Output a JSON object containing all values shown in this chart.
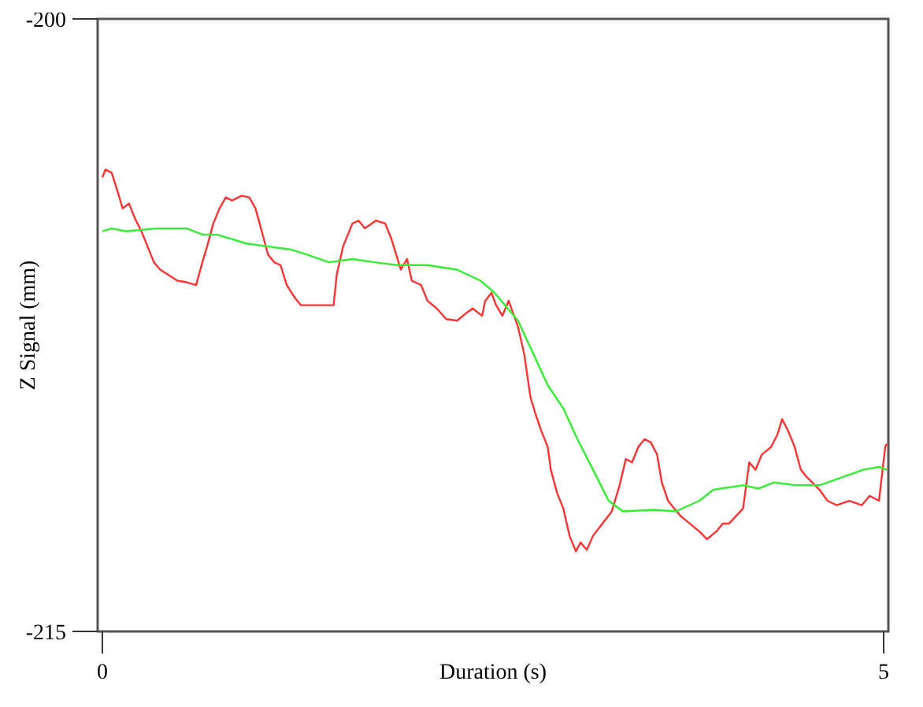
{
  "chart_data": {
    "type": "line",
    "xlabel": "Duration (s)",
    "ylabel": "Z Signal (mm)",
    "xlim": [
      -0.03,
      5.03
    ],
    "xticks": [
      0,
      5
    ],
    "ylim": [
      -215,
      -200
    ],
    "yticks": [
      -215,
      -200
    ],
    "grid": false,
    "series": [
      {
        "color": "#ff3333",
        "x": [
          0,
          0.02,
          0.06,
          0.1,
          0.13,
          0.17,
          0.21,
          0.25,
          0.29,
          0.33,
          0.37,
          0.42,
          0.48,
          0.54,
          0.6,
          0.64,
          0.67,
          0.71,
          0.75,
          0.79,
          0.83,
          0.89,
          0.94,
          0.98,
          1.02,
          1.06,
          1.1,
          1.14,
          1.18,
          1.23,
          1.27,
          1.35,
          1.48,
          1.5,
          1.54,
          1.6,
          1.64,
          1.68,
          1.75,
          1.81,
          1.85,
          1.91,
          1.95,
          1.98,
          2.04,
          2.08,
          2.14,
          2.2,
          2.27,
          2.33,
          2.37,
          2.43,
          2.45,
          2.49,
          2.52,
          2.56,
          2.6,
          2.66,
          2.7,
          2.74,
          2.77,
          2.81,
          2.85,
          2.87,
          2.91,
          2.95,
          2.99,
          3.03,
          3.06,
          3.1,
          3.14,
          3.2,
          3.26,
          3.31,
          3.35,
          3.39,
          3.43,
          3.47,
          3.51,
          3.55,
          3.58,
          3.62,
          3.66,
          3.7,
          3.76,
          3.82,
          3.87,
          3.93,
          3.97,
          4.01,
          4.1,
          4.14,
          4.18,
          4.22,
          4.28,
          4.32,
          4.35,
          4.39,
          4.43,
          4.47,
          4.51,
          4.59,
          4.64,
          4.7,
          4.78,
          4.86,
          4.91,
          4.97,
          5.01,
          5.02
        ],
        "values": [
          -203.88,
          -203.69,
          -203.77,
          -204.26,
          -204.64,
          -204.52,
          -204.9,
          -205.2,
          -205.58,
          -205.96,
          -206.14,
          -206.26,
          -206.41,
          -206.45,
          -206.52,
          -205.96,
          -205.58,
          -205.01,
          -204.64,
          -204.37,
          -204.45,
          -204.33,
          -204.37,
          -204.64,
          -205.2,
          -205.77,
          -205.96,
          -206.03,
          -206.52,
          -206.82,
          -207.01,
          -207.01,
          -207.01,
          -206.26,
          -205.58,
          -205.01,
          -204.94,
          -205.13,
          -204.94,
          -205.01,
          -205.39,
          -206.14,
          -205.88,
          -206.41,
          -206.52,
          -206.9,
          -207.09,
          -207.35,
          -207.39,
          -207.2,
          -207.09,
          -207.27,
          -206.9,
          -206.71,
          -207.01,
          -207.27,
          -206.9,
          -207.54,
          -208.22,
          -209.27,
          -209.65,
          -210.1,
          -210.48,
          -211.04,
          -211.61,
          -211.99,
          -212.66,
          -213.04,
          -212.82,
          -213.0,
          -212.66,
          -212.36,
          -212.06,
          -211.42,
          -210.78,
          -210.86,
          -210.48,
          -210.29,
          -210.37,
          -210.67,
          -211.35,
          -211.8,
          -211.99,
          -212.17,
          -212.36,
          -212.55,
          -212.74,
          -212.55,
          -212.36,
          -212.36,
          -211.99,
          -210.86,
          -211.04,
          -210.67,
          -210.48,
          -210.18,
          -209.8,
          -210.1,
          -210.48,
          -211.04,
          -211.23,
          -211.53,
          -211.8,
          -211.91,
          -211.8,
          -211.91,
          -211.68,
          -211.8,
          -210.48,
          -210.4
        ]
      },
      {
        "color": "#33ee33",
        "x": [
          0,
          0.06,
          0.15,
          0.35,
          0.54,
          0.64,
          0.73,
          0.83,
          0.92,
          1.07,
          1.21,
          1.31,
          1.45,
          1.6,
          1.74,
          1.89,
          2.08,
          2.27,
          2.42,
          2.51,
          2.66,
          2.76,
          2.85,
          2.95,
          3.04,
          3.14,
          3.24,
          3.33,
          3.53,
          3.67,
          3.82,
          3.91,
          4.1,
          4.2,
          4.3,
          4.44,
          4.59,
          4.73,
          4.87,
          4.97,
          5.02
        ],
        "values": [
          -205.2,
          -205.13,
          -205.2,
          -205.13,
          -205.13,
          -205.28,
          -205.28,
          -205.39,
          -205.5,
          -205.58,
          -205.65,
          -205.77,
          -205.96,
          -205.88,
          -205.96,
          -206.03,
          -206.03,
          -206.14,
          -206.41,
          -206.71,
          -207.39,
          -208.22,
          -208.97,
          -209.54,
          -210.29,
          -211.04,
          -211.8,
          -212.06,
          -212.02,
          -212.06,
          -211.8,
          -211.53,
          -211.42,
          -211.5,
          -211.35,
          -211.42,
          -211.42,
          -211.23,
          -211.04,
          -210.97,
          -211.04
        ]
      }
    ]
  }
}
